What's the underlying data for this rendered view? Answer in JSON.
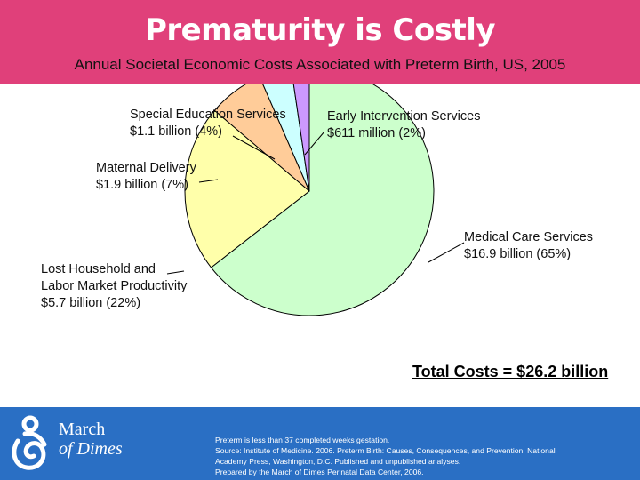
{
  "header": {
    "title": "Prematurity is Costly",
    "subtitle": "Annual Societal Economic Costs Associated with Preterm Birth, US, 2005"
  },
  "chart_data": {
    "type": "pie",
    "title": "Annual Societal Economic Costs Associated with Preterm Birth, US, 2005",
    "start_angle_deg": 0,
    "direction": "clockwise",
    "slices": [
      {
        "name": "Medical Care Services",
        "line1": "Medical Care Services",
        "line2": "$16.9 billion (65%)",
        "value": 16.9,
        "percent": 65,
        "color": "#ccffcc"
      },
      {
        "name": "Lost Household and Labor Market Productivity",
        "line1": "Lost Household and",
        "line2": "Labor Market Productivity",
        "line3": "$5.7 billion (22%)",
        "value": 5.7,
        "percent": 22,
        "color": "#ffffaa"
      },
      {
        "name": "Maternal Delivery",
        "line1": "Maternal Delivery",
        "line2": "$1.9 billion (7%)",
        "value": 1.9,
        "percent": 7,
        "color": "#ffcc99"
      },
      {
        "name": "Special Education Services",
        "line1": "Special Education Services",
        "line2": "$1.1 billion (4%)",
        "value": 1.1,
        "percent": 4,
        "color": "#ccffff"
      },
      {
        "name": "Early Intervention Services",
        "line1": "Early Intervention Services",
        "line2": "$611 million (2%)",
        "value": 0.611,
        "percent": 2,
        "color": "#cc99ff"
      }
    ],
    "total_label": "Total Costs = $26.2 billion"
  },
  "footer": {
    "logo": {
      "line1": "March",
      "line2": "of Dimes",
      "icon": "mother-child-logo-icon"
    },
    "notes": [
      "Preterm is less than 37 completed weeks gestation.",
      "Source: Institute of Medicine. 2006. Preterm Birth: Causes, Consequences, and Prevention. National",
      "Academy Press, Washington, D.C. Published and unpublished analyses.",
      "Prepared by the March of Dimes Perinatal Data Center, 2006."
    ]
  },
  "colors": {
    "header": "#e0407a",
    "footer": "#2a6fc4"
  }
}
